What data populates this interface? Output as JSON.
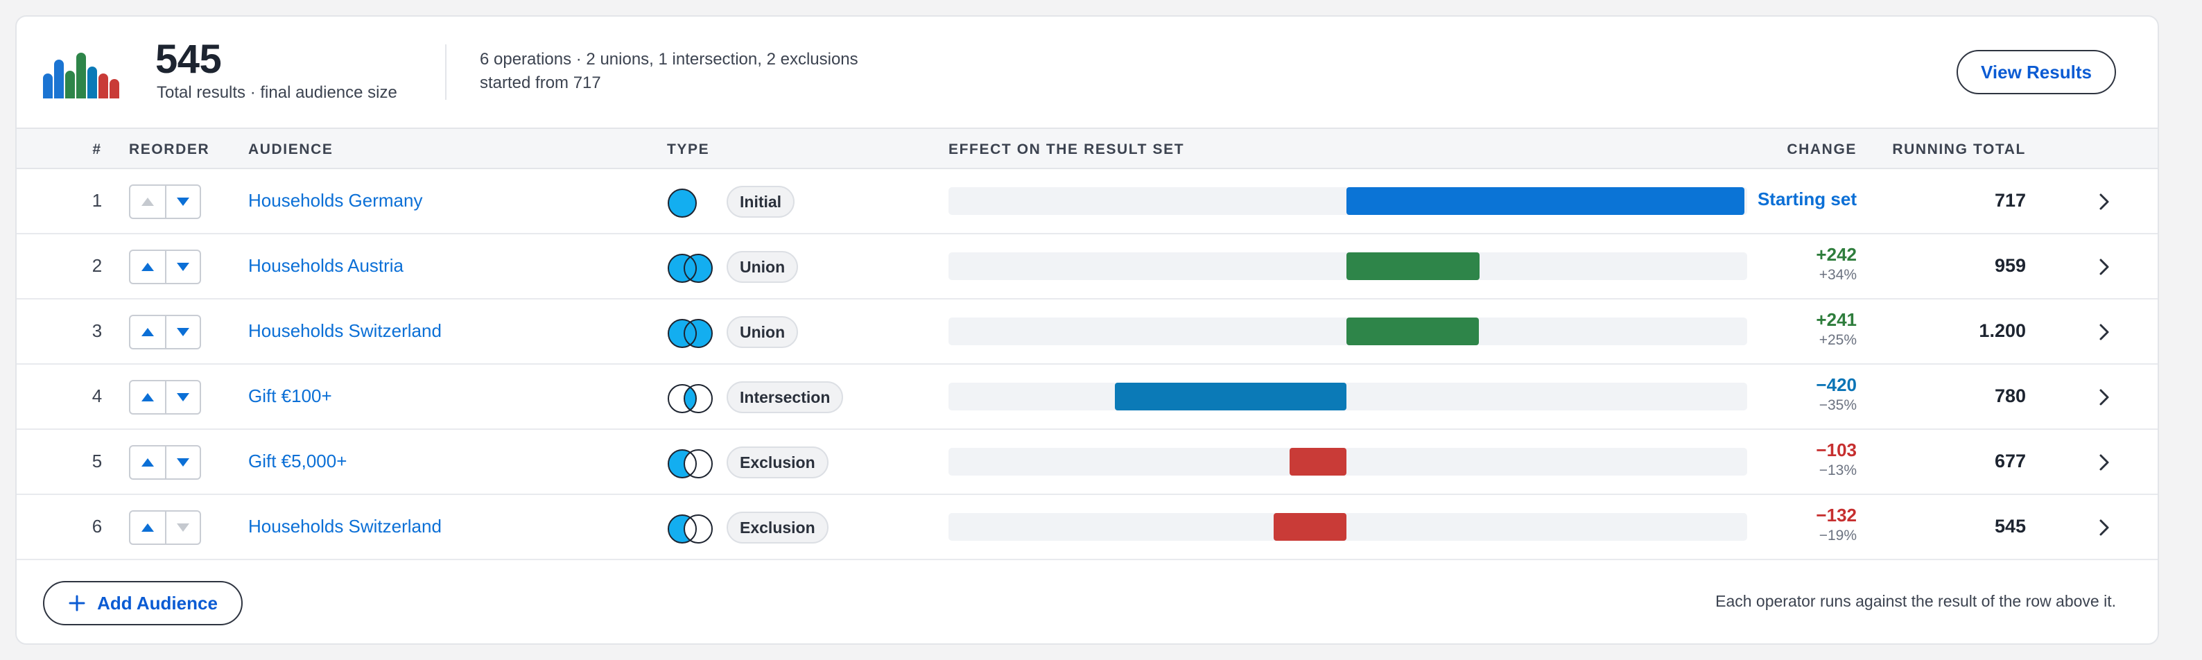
{
  "header": {
    "total": "545",
    "total_label": "Total results · final audience size",
    "summary_line1": "6 operations · 2 unions, 1 intersection, 2 exclusions",
    "summary_line2": "started from 717",
    "view_results_label": "View Results",
    "logo_icon": "bar-chart-logo-icon"
  },
  "columns": {
    "index": "#",
    "reorder": "REORDER",
    "audience": "AUDIENCE",
    "type": "TYPE",
    "effect": "EFFECT ON THE RESULT SET",
    "change": "CHANGE",
    "running_total": "RUNNING TOTAL"
  },
  "rows": [
    {
      "index": "1",
      "audience": "Households Germany",
      "type": "Initial",
      "change": "Starting set",
      "change_pct": "",
      "running_total": "717",
      "up_enabled": false,
      "down_enabled": true,
      "effect_value": 717,
      "effect_color": "#0b74d6",
      "change_color": "#0b6fd6"
    },
    {
      "index": "2",
      "audience": "Households Austria",
      "type": "Union",
      "change": "+242",
      "change_pct": "+34%",
      "running_total": "959",
      "up_enabled": true,
      "down_enabled": true,
      "effect_value": 242,
      "effect_color": "#2e8549",
      "change_color": "#2e7d3c"
    },
    {
      "index": "3",
      "audience": "Households Switzerland",
      "type": "Union",
      "change": "+241",
      "change_pct": "+25%",
      "running_total": "1.200",
      "up_enabled": true,
      "down_enabled": true,
      "effect_value": 241,
      "effect_color": "#2e8549",
      "change_color": "#2e7d3c"
    },
    {
      "index": "4",
      "audience": "Gift €100+",
      "type": "Intersection",
      "change": "−420",
      "change_pct": "−35%",
      "running_total": "780",
      "up_enabled": true,
      "down_enabled": true,
      "effect_value": -420,
      "effect_color": "#0b7ab7",
      "change_color": "#0b74b6"
    },
    {
      "index": "5",
      "audience": "Gift €5,000+",
      "type": "Exclusion",
      "change": "−103",
      "change_pct": "−13%",
      "running_total": "677",
      "up_enabled": true,
      "down_enabled": true,
      "effect_value": -103,
      "effect_color": "#c93b37",
      "change_color": "#c62f2f"
    },
    {
      "index": "6",
      "audience": "Households Switzerland",
      "type": "Exclusion",
      "change": "−132",
      "change_pct": "−19%",
      "running_total": "545",
      "up_enabled": true,
      "down_enabled": false,
      "effect_value": -132,
      "effect_color": "#c93b37",
      "change_color": "#c62f2f"
    }
  ],
  "footer": {
    "add_audience_label": "Add Audience",
    "note": "Each operator runs against the result of the row above it."
  },
  "colors": {
    "accent": "#0b6fd6",
    "union": "#2e8549",
    "intersection": "#0b7ab7",
    "exclusion": "#c93b37",
    "venn_fill": "#13aef0"
  }
}
